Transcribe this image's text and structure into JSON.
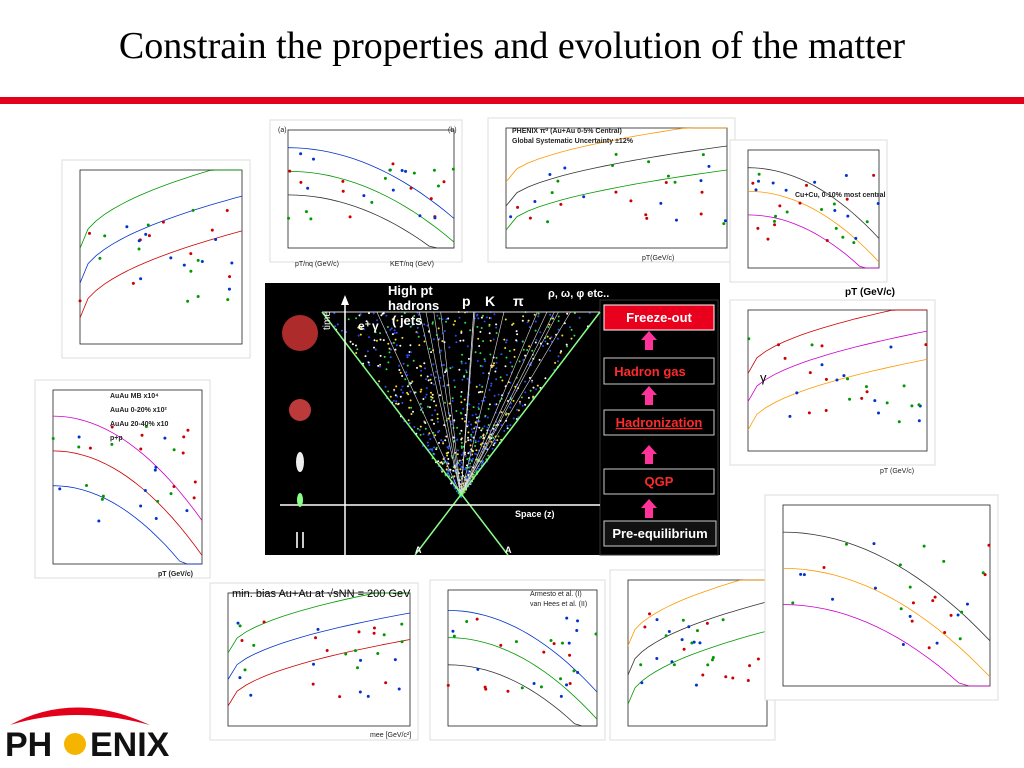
{
  "title": "Constrain the properties and evolution of the matter",
  "diagram": {
    "jets": [
      "High pt",
      "hadrons",
      "( jets"
    ],
    "particles": [
      "p",
      "K",
      "π",
      "ρ, ω, φ etc.."
    ],
    "stages": [
      "Freeze-out",
      "Hadron gas",
      "Hadronization",
      "QGP",
      "Pre-equilibrium"
    ],
    "time_axis": "time",
    "space_axis": "Space (z)",
    "nuclei": [
      "A",
      "A"
    ],
    "photon_labels": [
      "e⁺",
      "γ"
    ]
  },
  "panels": {
    "raa_pi0": [
      "PHENIX π⁰ (Au+Au 0-5% Central)",
      "Global Systematic Uncertainty ±12%",
      "pT(GeV/c)"
    ],
    "raa_cucu": [
      "Cu+Cu, 0-10% most central",
      "pT (GeV/c)"
    ],
    "spectra": [
      "AuAu MB x10⁴",
      "AuAu 0-20% x10²",
      "AuAu 20-40% x10",
      "p+p",
      "pT (GeV/c)"
    ],
    "dilepton": [
      "min. bias Au+Au at √sNN = 200 GeV",
      "mee [GeV/c²]"
    ],
    "v2": [
      "(a)",
      "(b)",
      "pT/nq (GeV/c)",
      "KET/nq (GeV)"
    ],
    "raa_direct": [
      "γ",
      "pT (GeV/c)"
    ],
    "heavy": [
      "Armesto et al. (I)",
      "van Hees et al. (II)"
    ]
  },
  "logo": {
    "left": "PH",
    "right": "ENIX"
  }
}
